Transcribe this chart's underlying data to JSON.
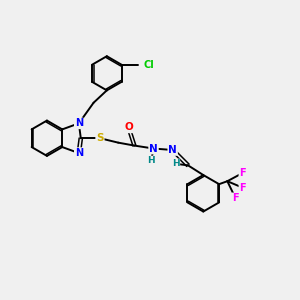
{
  "bg_color": "#f0f0f0",
  "bond_color": "#000000",
  "atom_colors": {
    "N": "#0000ff",
    "S": "#ccaa00",
    "O": "#ff0000",
    "Cl": "#00cc00",
    "F": "#ff00ff",
    "H": "#008888",
    "C": "#000000"
  },
  "figsize": [
    3.0,
    3.0
  ],
  "dpi": 100
}
